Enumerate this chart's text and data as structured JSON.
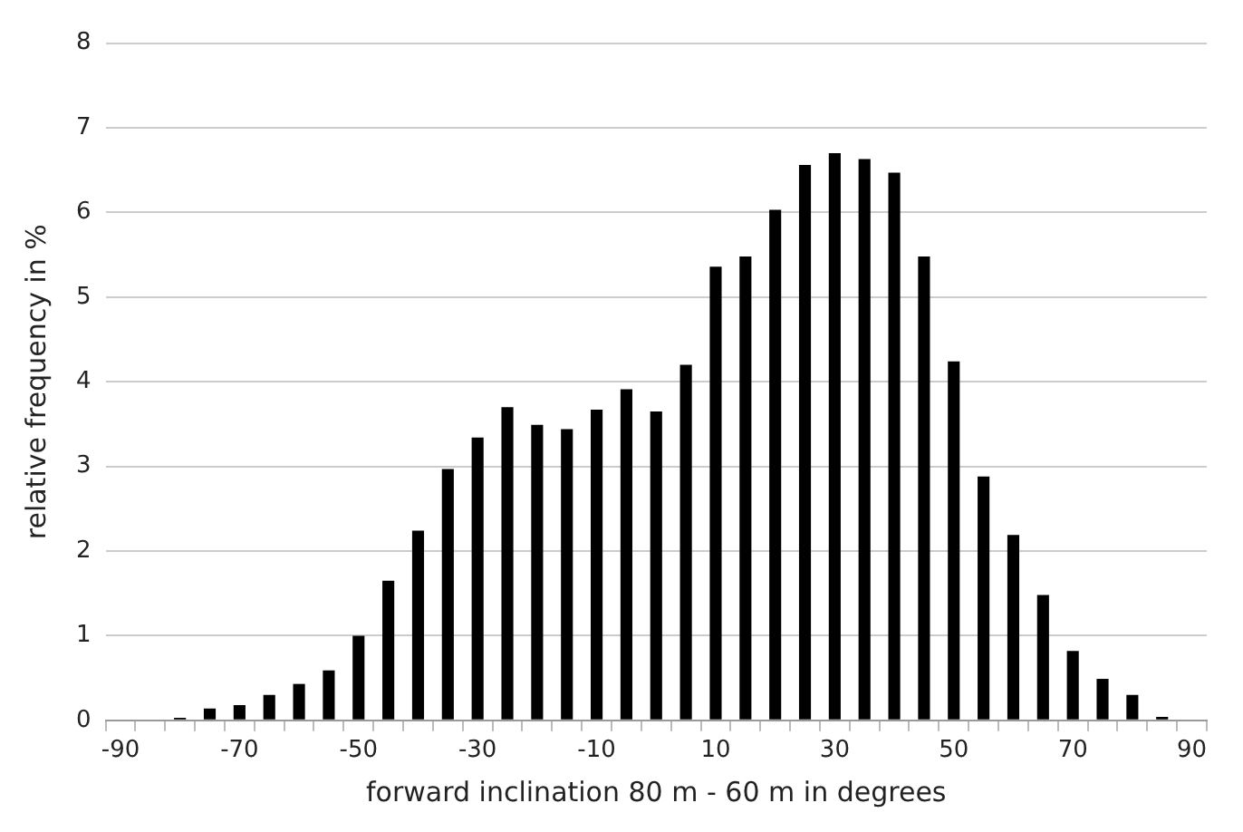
{
  "chart_data": {
    "type": "bar",
    "xlabel": "forward inclination 80 m - 60 m in degrees",
    "ylabel": "relative frequency in %",
    "categories": [
      "-90",
      null,
      null,
      null,
      "-70",
      null,
      null,
      null,
      "-50",
      null,
      null,
      null,
      "-30",
      null,
      null,
      null,
      "-10",
      null,
      null,
      null,
      "10",
      null,
      null,
      null,
      "30",
      null,
      null,
      null,
      "50",
      null,
      null,
      null,
      "70",
      null,
      null,
      null,
      "90"
    ],
    "values": [
      0,
      0,
      0.03,
      0.14,
      0.18,
      0.3,
      0.43,
      0.59,
      1.0,
      1.65,
      2.24,
      2.97,
      3.34,
      3.7,
      3.49,
      3.44,
      3.67,
      3.91,
      3.65,
      4.2,
      5.36,
      5.48,
      6.03,
      6.56,
      6.7,
      6.63,
      6.47,
      5.48,
      4.24,
      2.88,
      2.19,
      1.48,
      0.82,
      0.49,
      0.3,
      0.04,
      0
    ],
    "color": "#000000",
    "ylim": [
      0,
      8
    ],
    "yticks": [
      0,
      1,
      2,
      3,
      4,
      5,
      6,
      7,
      8
    ],
    "grid": "y"
  }
}
